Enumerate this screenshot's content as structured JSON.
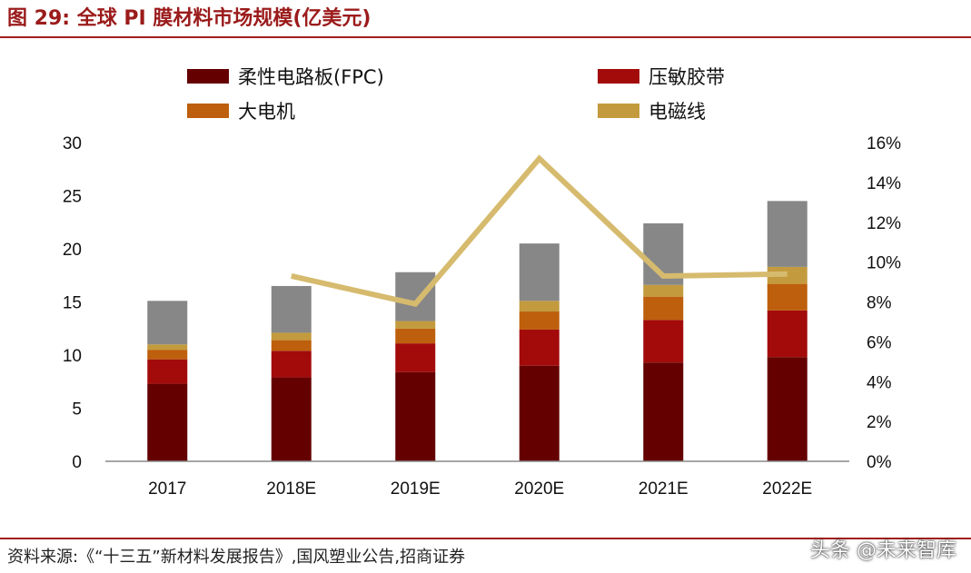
{
  "header": {
    "title": "图 29:  全球 PI 膜材料市场规模(亿美元)"
  },
  "footer": {
    "source": "资料来源:《“十三五”新材料发展报告》,国风塑业公告,招商证券",
    "watermark": "头条 @未来智库"
  },
  "colors": {
    "fpc": "#650000",
    "tape": "#a30b0b",
    "motor": "#bd5f0c",
    "wire": "#c39b3e",
    "other": "#878787",
    "growth_line": "#d6bb6e",
    "accent": "#a01e1e"
  },
  "chart_data": {
    "type": "bar",
    "stacked": true,
    "categories": [
      "2017",
      "2018E",
      "2019E",
      "2020E",
      "2021E",
      "2022E"
    ],
    "series": [
      {
        "name": "柔性电路板(FPC)",
        "values": [
          7.3,
          7.9,
          8.4,
          9.0,
          9.3,
          9.8
        ],
        "color": "#650000"
      },
      {
        "name": "压敏胶带",
        "values": [
          2.3,
          2.5,
          2.7,
          3.4,
          4.0,
          4.4
        ],
        "color": "#a30b0b"
      },
      {
        "name": "大电机",
        "values": [
          0.9,
          1.0,
          1.4,
          1.7,
          2.2,
          2.5
        ],
        "color": "#bd5f0c"
      },
      {
        "name": "电磁线",
        "values": [
          0.5,
          0.7,
          0.7,
          1.0,
          1.1,
          1.6
        ],
        "color": "#c39b3e"
      },
      {
        "values": [
          4.1,
          4.4,
          4.6,
          5.4,
          5.8,
          6.2
        ],
        "color": "#878787"
      }
    ],
    "growth_line": {
      "axis": "right",
      "x": [
        "2018E",
        "2019E",
        "2020E",
        "2021E",
        "2022E"
      ],
      "values": [
        0.093,
        0.079,
        0.152,
        0.093,
        0.094
      ],
      "color": "#d6bb6e"
    },
    "yleft": {
      "min": 0,
      "max": 30,
      "ticks": [
        "0",
        "5",
        "10",
        "15",
        "20",
        "25",
        "30"
      ]
    },
    "yright": {
      "min": 0,
      "max": 0.16,
      "ticks": [
        "0%",
        "2%",
        "4%",
        "6%",
        "8%",
        "10%",
        "12%",
        "14%",
        "16%"
      ]
    },
    "legend": {
      "placement": "top",
      "items": [
        {
          "label": "柔性电路板(FPC)",
          "color": "#650000"
        },
        {
          "label": "压敏胶带",
          "color": "#a30b0b"
        },
        {
          "label": "大电机",
          "color": "#bd5f0c"
        },
        {
          "label": "电磁线",
          "color": "#c39b3e"
        }
      ]
    },
    "grid": false
  }
}
